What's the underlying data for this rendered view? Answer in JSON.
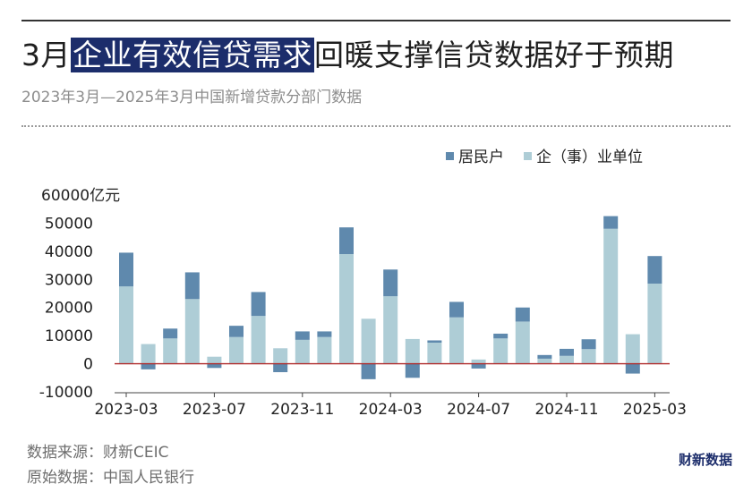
{
  "header": {
    "title_pre": "3月",
    "title_highlight": "企业有效信贷需求",
    "title_post": "回暖支撑信贷数据好于预期",
    "subtitle": "2023年3月—2025年3月中国新增贷款分部门数据"
  },
  "footer": {
    "source": "数据来源：财新CEIC",
    "raw_source": "原始数据：中国人民银行",
    "brand": "财新数据"
  },
  "colors": {
    "household": "#5f89ad",
    "enterprise": "#aecdd6",
    "zero_line": "#b02a2a",
    "highlight": "#1c2d6b"
  },
  "chart_data": {
    "type": "bar",
    "stacked": true,
    "title": "",
    "xlabel": "",
    "ylabel": "",
    "y_unit_label": "60000亿元",
    "ylim": [
      -10000,
      60000
    ],
    "yticks": [
      "-10000",
      "0",
      "10000",
      "20000",
      "30000",
      "40000",
      "50000"
    ],
    "grid": false,
    "legend_position": "top-right",
    "categories": [
      "2023-03",
      "2023-04",
      "2023-05",
      "2023-06",
      "2023-07",
      "2023-08",
      "2023-09",
      "2023-10",
      "2023-11",
      "2023-12",
      "2024-01",
      "2024-02",
      "2024-03",
      "2024-04",
      "2024-05",
      "2024-06",
      "2024-07",
      "2024-08",
      "2024-09",
      "2024-10",
      "2024-11",
      "2024-12",
      "2025-01",
      "2025-02",
      "2025-03"
    ],
    "xtick_labels": [
      "2023-03",
      "2023-07",
      "2023-11",
      "2024-03",
      "2024-07",
      "2024-11",
      "2025-03"
    ],
    "series": [
      {
        "name": "居民户",
        "values": [
          12000,
          -2000,
          3500,
          9500,
          -1500,
          4000,
          8500,
          -3000,
          3000,
          2000,
          9500,
          -5500,
          9500,
          -5000,
          800,
          5500,
          -1700,
          1700,
          5000,
          1300,
          2500,
          3500,
          4500,
          -3500,
          9800
        ]
      },
      {
        "name": "企（事）业单位",
        "values": [
          27500,
          7000,
          9000,
          23000,
          2500,
          9500,
          17000,
          5500,
          8500,
          9500,
          39000,
          16000,
          24000,
          8800,
          7500,
          16500,
          1500,
          9000,
          15000,
          1800,
          2800,
          5200,
          48000,
          10500,
          28500
        ]
      }
    ]
  }
}
